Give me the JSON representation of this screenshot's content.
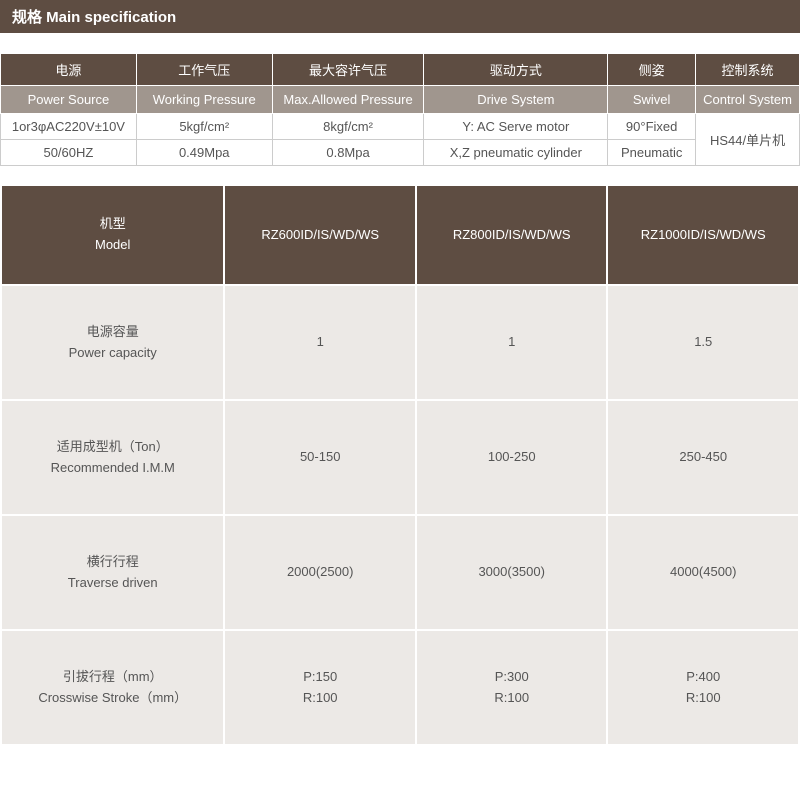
{
  "title": "规格 Main specification",
  "colors": {
    "header_bg": "#5e4d42",
    "subheader_bg": "#a0968e",
    "header_text": "#ffffff",
    "cell_bg": "#ffffff",
    "model_cell_bg": "#ece9e6",
    "border": "#ffffff",
    "text": "#555555"
  },
  "spec": {
    "col_widths_pct": [
      17,
      17,
      19,
      23,
      11,
      13
    ],
    "header_cn": [
      "电源",
      "工作气压",
      "最大容许气压",
      "驱动方式",
      "侧姿",
      "控制系统"
    ],
    "header_en": [
      "Power Source",
      "Working Pressure",
      "Max.Allowed Pressure",
      "Drive System",
      "Swivel",
      "Control System"
    ],
    "rows": [
      [
        "1or3φAC220V±10V",
        "5kgf/cm²",
        "8kgf/cm²",
        "Y: AC Serve motor",
        "90°Fixed",
        "HS44/单片机"
      ],
      [
        "50/60HZ",
        "0.49Mpa",
        "0.8Mpa",
        "X,Z pneumatic cylinder",
        "Pneumatic",
        ""
      ]
    ],
    "control_rowspan": 2
  },
  "model": {
    "col_widths_pct": [
      28,
      24,
      24,
      24
    ],
    "header_label": "机型\nModel",
    "models": [
      "RZ600ID/IS/WD/WS",
      "RZ800ID/IS/WD/WS",
      "RZ1000ID/IS/WD/WS"
    ],
    "rows": [
      {
        "label": "电源容量\nPower capacity",
        "values": [
          "1",
          "1",
          "1.5"
        ]
      },
      {
        "label": "适用成型机（Ton）\nRecommended I.M.M",
        "values": [
          "50-150",
          "100-250",
          "250-450"
        ]
      },
      {
        "label": "横行行程\nTraverse driven",
        "values": [
          "2000(2500)",
          "3000(3500)",
          "4000(4500)"
        ]
      },
      {
        "label": "引拔行程（mm）\nCrosswise Stroke（mm）",
        "values": [
          "P:150\nR:100",
          "P:300\nR:100",
          "P:400\nR:100"
        ]
      }
    ]
  }
}
